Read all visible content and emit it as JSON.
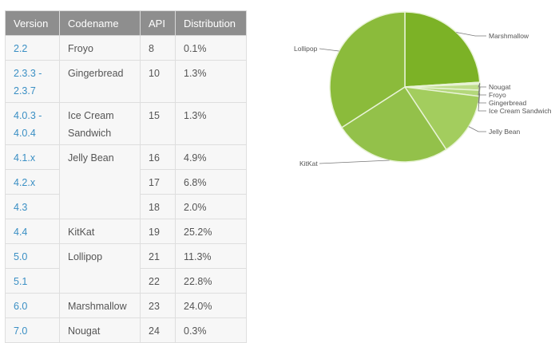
{
  "table": {
    "headers": [
      "Version",
      "Codename",
      "API",
      "Distribution"
    ],
    "rows": [
      {
        "version": "2.2",
        "codename": "Froyo",
        "api": "8",
        "distribution": "0.1%"
      },
      {
        "version": "2.3.3 - 2.3.7",
        "version_l1": "2.3.3 -",
        "version_l2": "2.3.7",
        "codename": "Gingerbread",
        "api": "10",
        "distribution": "1.3%"
      },
      {
        "version": "4.0.3 - 4.0.4",
        "version_l1": "4.0.3 -",
        "version_l2": "4.0.4",
        "codename": "Ice Cream Sandwich",
        "codename_l1": "Ice Cream",
        "codename_l2": "Sandwich",
        "api": "15",
        "distribution": "1.3%"
      },
      {
        "version": "4.1.x",
        "codename": "Jelly Bean",
        "api": "16",
        "distribution": "4.9%"
      },
      {
        "version": "4.2.x",
        "codename": "Jelly Bean",
        "api": "17",
        "distribution": "6.8%"
      },
      {
        "version": "4.3",
        "codename": "Jelly Bean",
        "api": "18",
        "distribution": "2.0%"
      },
      {
        "version": "4.4",
        "codename": "KitKat",
        "api": "19",
        "distribution": "25.2%"
      },
      {
        "version": "5.0",
        "codename": "Lollipop",
        "api": "21",
        "distribution": "11.3%"
      },
      {
        "version": "5.1",
        "codename": "Lollipop",
        "api": "22",
        "distribution": "22.8%"
      },
      {
        "version": "6.0",
        "codename": "Marshmallow",
        "api": "23",
        "distribution": "24.0%"
      },
      {
        "version": "7.0",
        "codename": "Nougat",
        "api": "24",
        "distribution": "0.3%"
      }
    ]
  },
  "colors": {
    "header_bg": "#8e8e8e",
    "version_link": "#3a8fc4",
    "marshmallow": "#7cb226",
    "lollipop": "#8bbb3b",
    "kitkat": "#93c14a",
    "jelly_bean": "#a3cd5e",
    "ice_cream_sandwich": "#b3d77a",
    "gingerbread": "#bfdd8c",
    "froyo": "#cce4a0",
    "nougat": "#d6eab2"
  },
  "chart_data": {
    "type": "pie",
    "title": "",
    "categories": [
      "Marshmallow",
      "Nougat",
      "Froyo",
      "Gingerbread",
      "Ice Cream Sandwich",
      "Jelly Bean",
      "KitKat",
      "Lollipop"
    ],
    "values": [
      24.0,
      0.3,
      0.1,
      1.3,
      1.3,
      13.7,
      25.2,
      34.1
    ],
    "labels": [
      "Marshmallow",
      "Nougat",
      "Froyo",
      "Gingerbread",
      "Ice Cream Sandwich",
      "Jelly Bean",
      "KitKat",
      "Lollipop"
    ],
    "start_angle_deg": 0,
    "direction": "clockwise from 12 o'clock"
  }
}
